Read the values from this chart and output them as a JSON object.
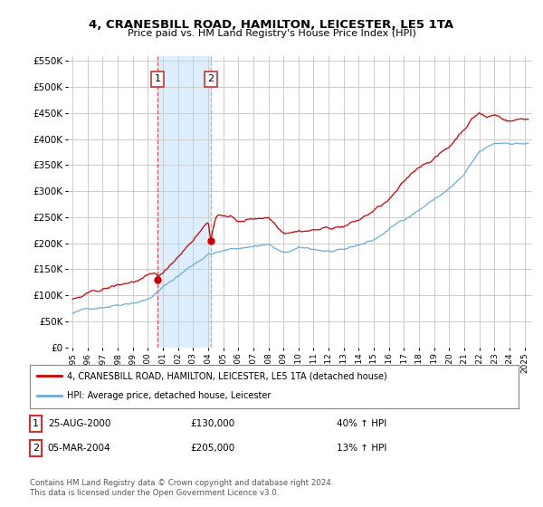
{
  "title": "4, CRANESBILL ROAD, HAMILTON, LEICESTER, LE5 1TA",
  "subtitle": "Price paid vs. HM Land Registry's House Price Index (HPI)",
  "legend_line1": "4, CRANESBILL ROAD, HAMILTON, LEICESTER, LE5 1TA (detached house)",
  "legend_line2": "HPI: Average price, detached house, Leicester",
  "table_rows": [
    {
      "num": "1",
      "date": "25-AUG-2000",
      "price": "£130,000",
      "change": "40% ↑ HPI"
    },
    {
      "num": "2",
      "date": "05-MAR-2004",
      "price": "£205,000",
      "change": "13% ↑ HPI"
    }
  ],
  "footer": "Contains HM Land Registry data © Crown copyright and database right 2024.\nThis data is licensed under the Open Government Licence v3.0.",
  "sale1_x": 2000.65,
  "sale1_y": 130000,
  "sale2_x": 2004.17,
  "sale2_y": 205000,
  "sale1_label": "1",
  "sale2_label": "2",
  "shaded_xmin": 2000.65,
  "shaded_xmax": 2004.17,
  "hpi_color": "#6baed6",
  "price_color": "#cc0000",
  "shade_color": "#ddeeff",
  "ylim": [
    0,
    560000
  ],
  "yticks": [
    0,
    50000,
    100000,
    150000,
    200000,
    250000,
    300000,
    350000,
    400000,
    450000,
    500000,
    550000
  ],
  "background_color": "#ffffff",
  "grid_color": "#cccccc",
  "xmin": 1995.0,
  "xmax": 2025.5
}
